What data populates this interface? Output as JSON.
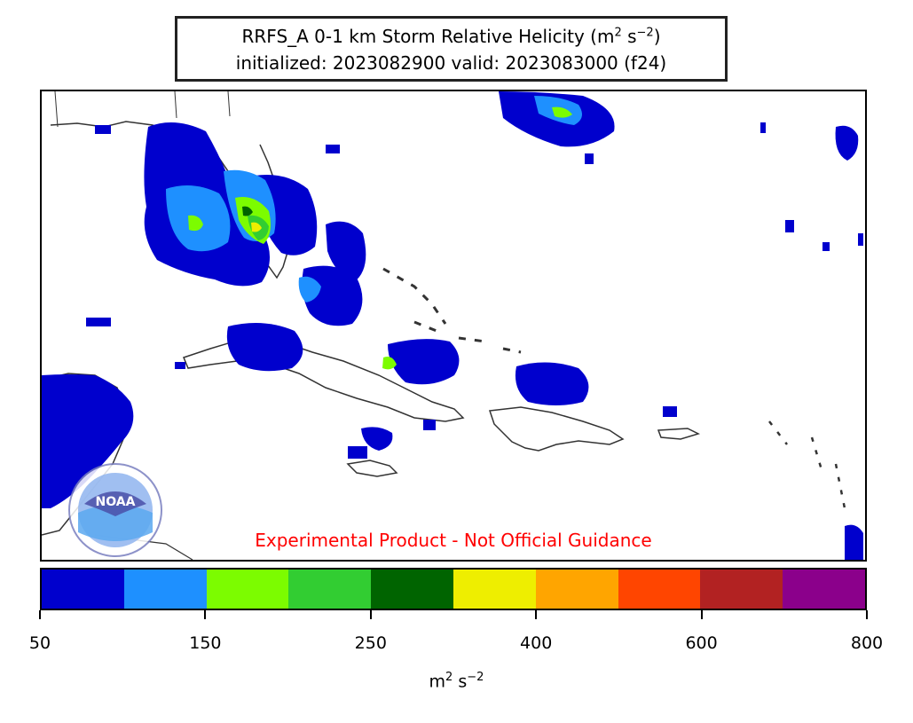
{
  "title": {
    "line1_prefix": "RRFS_A 0-1 km Storm Relative Helicity (m",
    "line1_sup1": "2",
    "line1_mid": " s",
    "line1_sup2": "−2",
    "line1_suffix": ")",
    "line2": "initialized: 2023082900 valid: 2023083000 (f24)"
  },
  "disclaimer": "Experimental Product - Not Official Guidance",
  "logo": {
    "icon": "noaa-logo-icon",
    "text": "NOAA"
  },
  "colorbar": {
    "colors": [
      "#0000cd",
      "#1e90ff",
      "#7cfc00",
      "#32cd32",
      "#006400",
      "#eeee00",
      "#ffa500",
      "#ff4500",
      "#b22222",
      "#8b008b"
    ],
    "tick_values": [
      50,
      150,
      250,
      400,
      600,
      800
    ],
    "tick_labels": [
      "50",
      "150",
      "250",
      "400",
      "600",
      "800"
    ],
    "units_base": "m",
    "units_sup1": "2",
    "units_mid": " s",
    "units_sup2": "−2"
  },
  "colors": {
    "coastline": "#333333",
    "disclaimer": "#ff0000"
  }
}
